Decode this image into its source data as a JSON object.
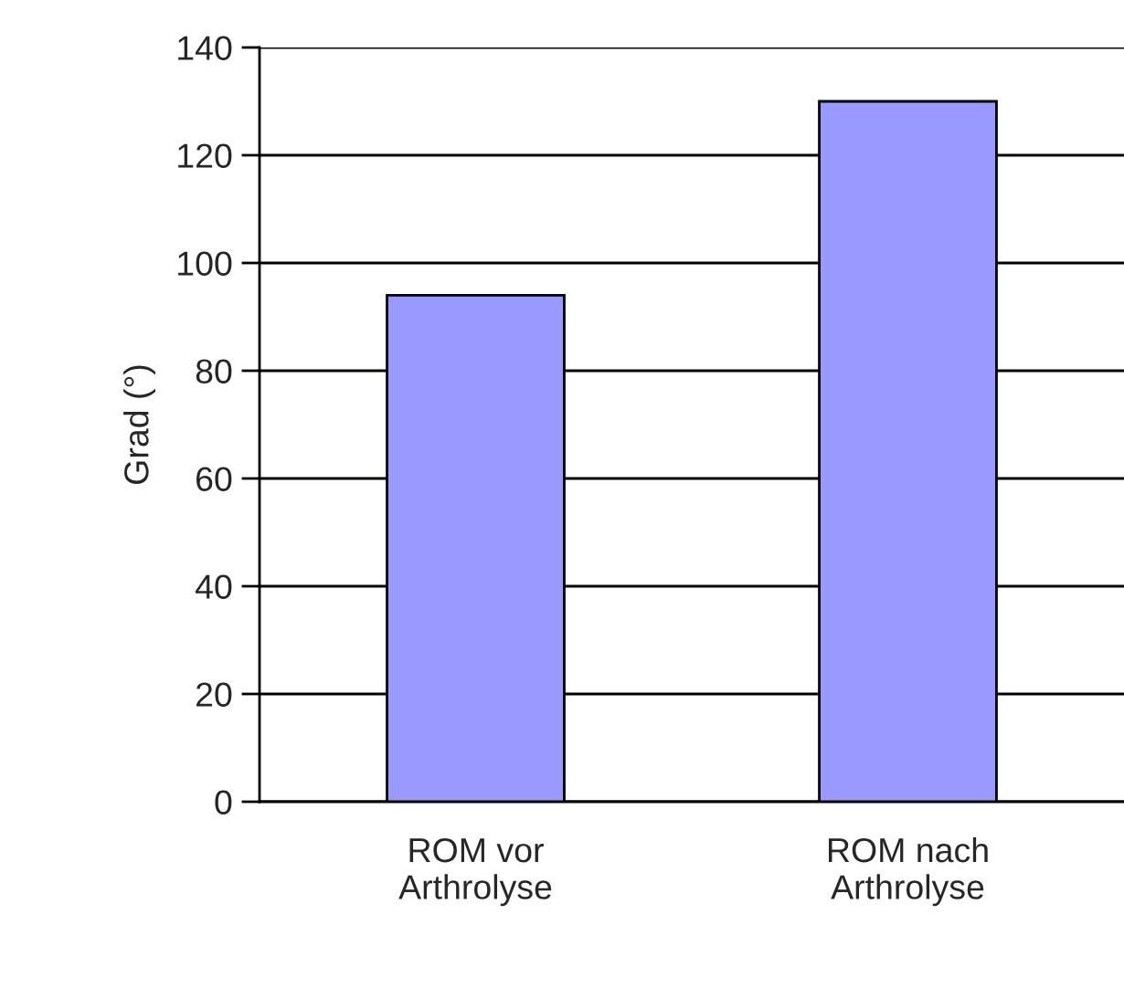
{
  "chart_data": {
    "type": "bar",
    "ylabel": "Grad (°)",
    "categories": [
      "ROM vor\nArthrolyse",
      "ROM nach\nArthrolyse"
    ],
    "values": [
      94,
      130
    ],
    "color": "#9999ff",
    "ylim": [
      0,
      140
    ],
    "yticks": [
      0,
      20,
      40,
      60,
      80,
      100,
      120,
      140
    ],
    "grid": "y"
  }
}
